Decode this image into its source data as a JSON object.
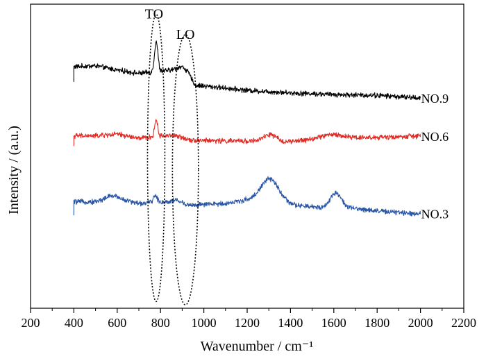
{
  "chart_data": {
    "type": "line",
    "xlabel": "Wavenumber / cm⁻¹",
    "ylabel": "Intensity / (a.u.)",
    "xlim": [
      200,
      2200
    ],
    "x_ticks": [
      200,
      400,
      600,
      800,
      1000,
      1200,
      1400,
      1600,
      1800,
      2000,
      2200
    ],
    "x_minor_step": 100,
    "y_ticks": false,
    "grid": false,
    "x_range_data": [
      400,
      2000
    ],
    "noise": 0.012,
    "annotations": [
      {
        "text": "TO",
        "center_x": 780,
        "x_halfwidth": 40,
        "y_top": 1.12,
        "y_bottom": -0.58
      },
      {
        "text": "LO",
        "center_x": 915,
        "x_halfwidth": 60,
        "y_top": 1.0,
        "y_bottom": -0.6
      }
    ],
    "series": [
      {
        "name": "NO.9",
        "color": "#000000",
        "offset": 0.78,
        "start_dip_to": 0.72,
        "baseline": [
          [
            400,
            0.81
          ],
          [
            500,
            0.815
          ],
          [
            600,
            0.79
          ],
          [
            700,
            0.77
          ],
          [
            860,
            0.79
          ],
          [
            930,
            0.76
          ],
          [
            960,
            0.7
          ],
          [
            1050,
            0.69
          ],
          [
            1200,
            0.67
          ],
          [
            1400,
            0.655
          ],
          [
            1600,
            0.645
          ],
          [
            1800,
            0.64
          ],
          [
            2000,
            0.625
          ]
        ],
        "peaks": [
          {
            "center": 780,
            "height": 0.18,
            "width": 11
          },
          {
            "center": 900,
            "height": 0.035,
            "width": 30
          }
        ]
      },
      {
        "name": "NO.6",
        "color": "#e32b25",
        "offset": 0.4,
        "start_dip_to": 0.34,
        "baseline": [
          [
            400,
            0.4
          ],
          [
            500,
            0.4
          ],
          [
            600,
            0.41
          ],
          [
            700,
            0.385
          ],
          [
            850,
            0.405
          ],
          [
            950,
            0.375
          ],
          [
            1100,
            0.37
          ],
          [
            1200,
            0.37
          ],
          [
            1400,
            0.365
          ],
          [
            1500,
            0.38
          ],
          [
            1600,
            0.395
          ],
          [
            1800,
            0.39
          ],
          [
            2000,
            0.4
          ]
        ],
        "peaks": [
          {
            "center": 780,
            "height": 0.1,
            "width": 10
          },
          {
            "center": 1305,
            "height": 0.04,
            "width": 40
          },
          {
            "center": 1580,
            "height": 0.015,
            "width": 60
          }
        ]
      },
      {
        "name": "NO.3",
        "color": "#2a56a6",
        "offset": 0.0,
        "start_dip_to": -0.07,
        "baseline": [
          [
            400,
            0.01
          ],
          [
            500,
            0.01
          ],
          [
            600,
            0.03
          ],
          [
            700,
            0.0
          ],
          [
            800,
            0.01
          ],
          [
            950,
            -0.01
          ],
          [
            1100,
            0.0
          ],
          [
            1200,
            0.02
          ],
          [
            1400,
            -0.01
          ],
          [
            1500,
            -0.02
          ],
          [
            1700,
            -0.03
          ],
          [
            1850,
            -0.05
          ],
          [
            2000,
            -0.06
          ]
        ],
        "peaks": [
          {
            "center": 775,
            "height": 0.04,
            "width": 12
          },
          {
            "center": 1305,
            "height": 0.14,
            "width": 60
          },
          {
            "center": 1610,
            "height": 0.09,
            "width": 35
          },
          {
            "center": 570,
            "height": 0.02,
            "width": 40
          },
          {
            "center": 870,
            "height": 0.02,
            "width": 30
          }
        ]
      }
    ]
  }
}
